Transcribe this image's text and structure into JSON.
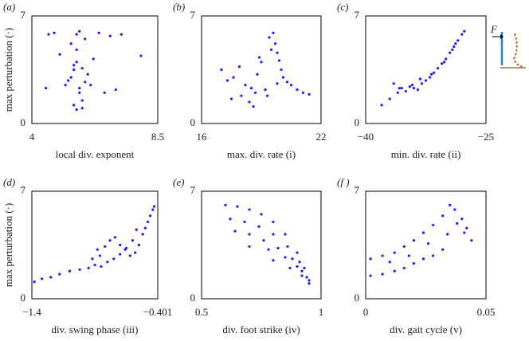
{
  "chart_data": [
    {
      "type": "scatter",
      "label": "(a)",
      "xlabel": "local div. exponent",
      "ylabel": "max perturbation (·)",
      "color": "#1a1aff",
      "xlim": [
        4,
        8.5
      ],
      "xticks": [
        4,
        8.5
      ],
      "ylim": [
        0,
        7
      ],
      "yticks": [
        0,
        7
      ],
      "x": [
        5.2,
        5.4,
        5.5,
        5.6,
        5.7,
        5.8,
        5.5,
        5.6,
        5.9,
        6.0,
        5.3,
        5.7,
        5.6,
        5.8,
        5.5,
        6.2,
        6.4,
        6.8,
        7.2,
        4.6,
        4.8,
        5.0,
        7.9,
        6.6,
        5.7,
        5.6,
        5.9,
        5.4,
        6.1,
        5.8,
        4.5,
        7.0
      ],
      "y": [
        2.5,
        3.0,
        3.5,
        4.0,
        2.0,
        1.5,
        1.2,
        4.8,
        5.5,
        3.2,
        2.8,
        2.3,
        5.8,
        1.0,
        3.8,
        4.2,
        5.9,
        5.7,
        5.8,
        5.8,
        5.9,
        4.5,
        4.4,
        2.0,
        6.0,
        0.9,
        2.7,
        5.2,
        2.5,
        3.6,
        2.3,
        2.2
      ]
    },
    {
      "type": "scatter",
      "label": "(b)",
      "xlabel": "max. div. rate (i)",
      "color": "#1a1aff",
      "xlim": [
        16,
        22
      ],
      "xticks": [
        16,
        22
      ],
      "ylim": [
        0,
        7
      ],
      "yticks": [
        0,
        7
      ],
      "x": [
        17.0,
        17.3,
        17.6,
        17.9,
        18.2,
        18.5,
        18.8,
        19.0,
        17.5,
        18.0,
        18.4,
        18.7,
        19.2,
        19.4,
        19.6,
        19.7,
        19.8,
        19.9,
        20.0,
        20.1,
        20.3,
        20.5,
        20.8,
        21.1,
        21.4,
        19.3,
        19.5,
        19.8,
        18.6,
        18.9
      ],
      "y": [
        3.5,
        2.8,
        3.0,
        3.7,
        2.5,
        2.3,
        3.2,
        4.0,
        1.6,
        1.8,
        1.4,
        2.0,
        2.2,
        5.6,
        5.9,
        5.2,
        4.6,
        4.1,
        3.5,
        3.0,
        2.7,
        2.5,
        2.2,
        2.0,
        1.9,
        1.8,
        4.8,
        2.6,
        1.1,
        4.3
      ]
    },
    {
      "type": "scatter",
      "label": "(c)",
      "xlabel": "min. div. rate (ii)",
      "annotation": "F",
      "color": "#1a1aff",
      "xlim": [
        -40,
        -25
      ],
      "xticks": [
        {
          "value": -40,
          "label": "−40"
        },
        {
          "value": -25,
          "label": "−25"
        }
      ],
      "ylim": [
        0,
        7
      ],
      "yticks": [
        0,
        7
      ],
      "x": [
        -38.0,
        -37.0,
        -36.0,
        -35.5,
        -35.0,
        -34.5,
        -34.0,
        -33.5,
        -33.0,
        -32.5,
        -32.0,
        -31.5,
        -31.0,
        -30.5,
        -30.0,
        -29.5,
        -29.0,
        -28.5,
        -28.0,
        -27.7,
        -36.5,
        -35.8,
        -34.2,
        -33.2,
        -31.8,
        -30.2,
        -29.2,
        -28.8
      ],
      "y": [
        1.2,
        1.6,
        2.0,
        2.3,
        2.1,
        2.4,
        2.3,
        2.2,
        2.6,
        2.8,
        3.0,
        3.3,
        3.6,
        3.9,
        4.2,
        4.6,
        5.0,
        5.4,
        5.8,
        6.0,
        2.6,
        2.3,
        2.5,
        2.9,
        3.2,
        4.0,
        4.8,
        5.2
      ]
    },
    {
      "type": "scatter",
      "label": "(d)",
      "xlabel": "div. swing phase (iii)",
      "ylabel": "max perturbation (·)",
      "color": "#1a1aff",
      "xlim": [
        -1.4,
        -0.401
      ],
      "xticks": [
        {
          "value": -1.4,
          "label": "−1.4"
        },
        {
          "value": -0.401,
          "label": "−0.401"
        }
      ],
      "ylim": [
        0,
        7
      ],
      "yticks": [
        0,
        7
      ],
      "x": [
        -1.38,
        -1.32,
        -1.25,
        -1.18,
        -1.1,
        -1.02,
        -0.95,
        -0.9,
        -0.86,
        -0.82,
        -0.78,
        -0.74,
        -0.7,
        -0.66,
        -0.62,
        -0.58,
        -0.55,
        -0.52,
        -0.5,
        -0.48,
        -0.46,
        -0.44,
        -0.43,
        -0.85,
        -0.8,
        -0.75,
        -0.7,
        -0.65,
        -0.6,
        -0.57,
        -0.92,
        -0.88
      ],
      "y": [
        1.1,
        1.3,
        1.4,
        1.6,
        1.8,
        1.9,
        2.0,
        2.2,
        2.8,
        3.4,
        3.8,
        4.0,
        3.5,
        3.2,
        2.8,
        3.0,
        3.5,
        4.2,
        4.6,
        5.0,
        5.4,
        5.8,
        6.0,
        2.1,
        2.4,
        2.6,
        2.9,
        3.3,
        3.8,
        4.5,
        2.6,
        3.2
      ]
    },
    {
      "type": "scatter",
      "label": "(e)",
      "xlabel": "div. foot strike (iv)",
      "color": "#1a1aff",
      "xlim": [
        0.5,
        1
      ],
      "xticks": [
        0.5,
        1
      ],
      "ylim": [
        0,
        7
      ],
      "yticks": [
        0,
        7
      ],
      "x": [
        0.6,
        0.65,
        0.7,
        0.75,
        0.8,
        0.85,
        0.9,
        0.93,
        0.95,
        0.62,
        0.68,
        0.74,
        0.8,
        0.86,
        0.91,
        0.64,
        0.7,
        0.76,
        0.82,
        0.88,
        0.92,
        0.7,
        0.78,
        0.85,
        0.9,
        0.94,
        0.8,
        0.87,
        0.92,
        0.95
      ],
      "y": [
        6.1,
        6.0,
        5.8,
        5.5,
        5.0,
        4.2,
        3.0,
        2.0,
        1.0,
        5.2,
        5.0,
        4.7,
        4.2,
        3.4,
        2.4,
        4.4,
        4.2,
        3.8,
        3.3,
        2.6,
        1.8,
        3.4,
        3.2,
        2.7,
        2.1,
        1.4,
        2.5,
        2.0,
        1.5,
        1.2
      ]
    },
    {
      "type": "scatter",
      "label": "(f )",
      "xlabel": "div. gait cycle (v)",
      "color": "#1a1aff",
      "xlim": [
        0,
        0.05
      ],
      "xticks": [
        0,
        0.05
      ],
      "ylim": [
        0,
        7
      ],
      "yticks": [
        0,
        7
      ],
      "x": [
        0.002,
        0.002,
        0.007,
        0.007,
        0.012,
        0.012,
        0.016,
        0.016,
        0.02,
        0.02,
        0.024,
        0.024,
        0.028,
        0.028,
        0.032,
        0.032,
        0.035,
        0.037,
        0.04,
        0.042,
        0.044,
        0.01,
        0.018,
        0.026,
        0.034,
        0.038,
        0.041
      ],
      "y": [
        2.6,
        1.5,
        2.8,
        1.6,
        3.0,
        1.8,
        3.4,
        2.0,
        3.8,
        2.3,
        4.3,
        2.6,
        4.8,
        2.8,
        5.4,
        3.2,
        6.1,
        5.8,
        5.2,
        4.6,
        3.8,
        2.4,
        2.8,
        3.6,
        4.2,
        4.9,
        4.3
      ]
    }
  ]
}
